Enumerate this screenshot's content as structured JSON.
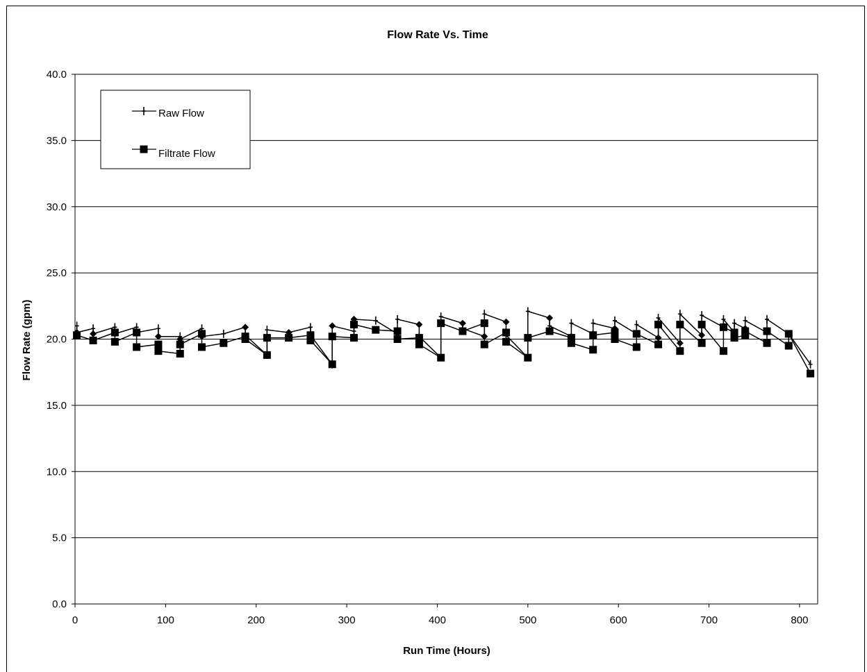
{
  "chart_data": {
    "type": "line",
    "title": "Flow Rate Vs. Time",
    "xlabel": "Run Time (Hours)",
    "ylabel": "Flow Rate (gpm)",
    "xlim": [
      0,
      820
    ],
    "ylim": [
      0,
      40
    ],
    "xticks": [
      "0",
      "100",
      "200",
      "300",
      "400",
      "500",
      "600",
      "700",
      "800"
    ],
    "yticks": [
      "0.0",
      "5.0",
      "10.0",
      "15.0",
      "20.0",
      "25.0",
      "30.0",
      "35.0",
      "40.0"
    ],
    "grid": "horizontal",
    "legend_position": "top-left",
    "series": [
      {
        "name": "Raw Flow",
        "marker": "plus",
        "color": "#000000",
        "points": [
          [
            2,
            21.0
          ],
          [
            2,
            20.5
          ],
          [
            20,
            20.8
          ],
          [
            20,
            20.4
          ],
          [
            44,
            20.9
          ],
          [
            44,
            20.4
          ],
          [
            68,
            20.9
          ],
          [
            68,
            20.5
          ],
          [
            92,
            20.8
          ],
          [
            92,
            20.2
          ],
          [
            116,
            20.2
          ],
          [
            116,
            20.0
          ],
          [
            140,
            20.8
          ],
          [
            140,
            20.2
          ],
          [
            164,
            20.4
          ],
          [
            188,
            20.9
          ],
          [
            188,
            20.3
          ],
          [
            212,
            18.8
          ],
          [
            212,
            20.7
          ],
          [
            236,
            20.5
          ],
          [
            260,
            20.9
          ],
          [
            260,
            20.3
          ],
          [
            284,
            18.1
          ],
          [
            284,
            21.0
          ],
          [
            308,
            20.6
          ],
          [
            308,
            21.5
          ],
          [
            332,
            21.4
          ],
          [
            356,
            20.4
          ],
          [
            356,
            21.5
          ],
          [
            380,
            21.1
          ],
          [
            380,
            20.2
          ],
          [
            404,
            18.6
          ],
          [
            404,
            21.7
          ],
          [
            428,
            21.2
          ],
          [
            428,
            20.8
          ],
          [
            452,
            20.2
          ],
          [
            452,
            21.9
          ],
          [
            476,
            21.3
          ],
          [
            476,
            20.3
          ],
          [
            500,
            18.6
          ],
          [
            500,
            22.1
          ],
          [
            524,
            21.6
          ],
          [
            524,
            21.0
          ],
          [
            548,
            20.2
          ],
          [
            548,
            21.2
          ],
          [
            572,
            20.4
          ],
          [
            572,
            21.2
          ],
          [
            596,
            20.8
          ],
          [
            596,
            21.4
          ],
          [
            620,
            20.4
          ],
          [
            620,
            21.1
          ],
          [
            644,
            20.1
          ],
          [
            644,
            21.6
          ],
          [
            668,
            19.7
          ],
          [
            668,
            21.9
          ],
          [
            692,
            20.3
          ],
          [
            692,
            21.8
          ],
          [
            716,
            20.9
          ],
          [
            716,
            21.5
          ],
          [
            728,
            20.5
          ],
          [
            728,
            21.2
          ],
          [
            740,
            20.8
          ],
          [
            740,
            21.4
          ],
          [
            764,
            20.5
          ],
          [
            764,
            21.5
          ],
          [
            788,
            20.4
          ],
          [
            812,
            18.1
          ]
        ]
      },
      {
        "name": "Filtrate Flow",
        "marker": "square",
        "color": "#000000",
        "points": [
          [
            2,
            20.3
          ],
          [
            20,
            19.9
          ],
          [
            44,
            20.5
          ],
          [
            44,
            19.8
          ],
          [
            68,
            20.5
          ],
          [
            68,
            19.4
          ],
          [
            92,
            19.6
          ],
          [
            92,
            19.1
          ],
          [
            116,
            18.9
          ],
          [
            116,
            19.6
          ],
          [
            140,
            20.4
          ],
          [
            140,
            19.4
          ],
          [
            164,
            19.7
          ],
          [
            188,
            20.2
          ],
          [
            188,
            20.0
          ],
          [
            212,
            18.8
          ],
          [
            212,
            20.1
          ],
          [
            236,
            20.1
          ],
          [
            260,
            20.3
          ],
          [
            260,
            19.9
          ],
          [
            284,
            18.1
          ],
          [
            284,
            20.2
          ],
          [
            308,
            20.1
          ],
          [
            308,
            21.1
          ],
          [
            332,
            20.7
          ],
          [
            356,
            20.6
          ],
          [
            356,
            20.0
          ],
          [
            380,
            20.1
          ],
          [
            380,
            19.6
          ],
          [
            404,
            18.6
          ],
          [
            404,
            21.2
          ],
          [
            428,
            20.6
          ],
          [
            452,
            21.2
          ],
          [
            452,
            19.6
          ],
          [
            476,
            20.5
          ],
          [
            476,
            19.8
          ],
          [
            500,
            18.6
          ],
          [
            500,
            20.1
          ],
          [
            524,
            20.6
          ],
          [
            548,
            20.1
          ],
          [
            548,
            19.7
          ],
          [
            572,
            19.2
          ],
          [
            572,
            20.3
          ],
          [
            596,
            20.5
          ],
          [
            596,
            20.0
          ],
          [
            620,
            19.4
          ],
          [
            620,
            20.4
          ],
          [
            644,
            19.6
          ],
          [
            644,
            21.1
          ],
          [
            668,
            19.1
          ],
          [
            668,
            21.1
          ],
          [
            692,
            19.7
          ],
          [
            692,
            21.1
          ],
          [
            716,
            19.1
          ],
          [
            716,
            20.9
          ],
          [
            728,
            20.5
          ],
          [
            728,
            20.1
          ],
          [
            740,
            20.3
          ],
          [
            740,
            20.6
          ],
          [
            764,
            19.7
          ],
          [
            764,
            20.6
          ],
          [
            788,
            19.5
          ],
          [
            788,
            20.4
          ],
          [
            812,
            17.4
          ]
        ]
      }
    ]
  }
}
